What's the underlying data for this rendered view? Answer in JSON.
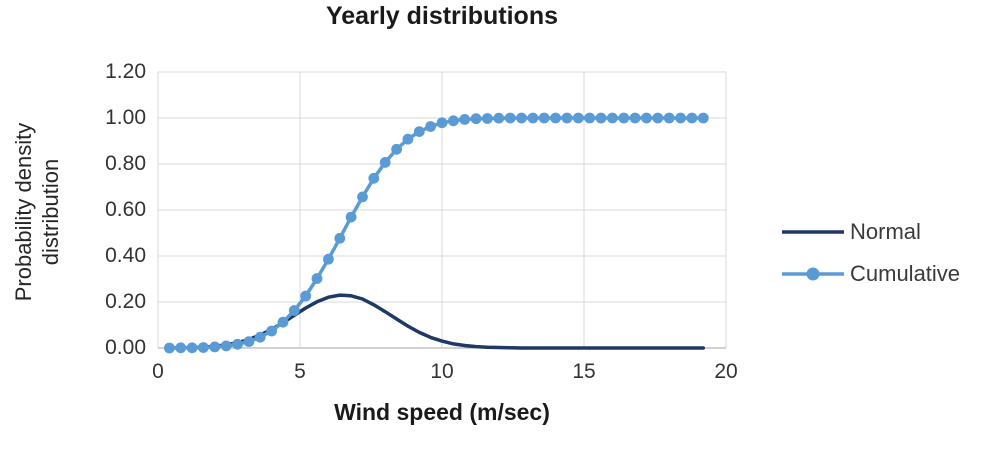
{
  "title": "Yearly distributions",
  "axes": {
    "x": {
      "title": "Wind speed (m/sec)",
      "tick_labels": [
        "0",
        "5",
        "10",
        "15",
        "20"
      ],
      "tick_values": [
        0,
        5,
        10,
        15,
        20
      ],
      "min": 0,
      "max": 20
    },
    "y": {
      "title_line1": "Probability density",
      "title_line2": "distribution",
      "tick_labels": [
        "0.00",
        "0.20",
        "0.40",
        "0.60",
        "0.80",
        "1.00",
        "1.20"
      ],
      "tick_values": [
        0,
        0.2,
        0.4,
        0.6,
        0.8,
        1.0,
        1.2
      ],
      "min": 0,
      "max": 1.2
    }
  },
  "colors": {
    "normal_line": "#1f3864",
    "cumulative_line": "#5b9bd5",
    "gridline": "#d9d9d9",
    "axis_line": "#a6a6a6",
    "text": "#262626"
  },
  "chart_data": {
    "type": "line",
    "title": "Yearly distributions",
    "xlabel": "Wind speed (m/sec)",
    "ylabel": "Probability density distribution",
    "xlim": [
      0,
      20
    ],
    "ylim": [
      0,
      1.2
    ],
    "grid": true,
    "legend_position": "right",
    "x": [
      0.4,
      0.8,
      1.2,
      1.6,
      2.0,
      2.4,
      2.8,
      3.2,
      3.6,
      4.0,
      4.4,
      4.8,
      5.2,
      5.6,
      6.0,
      6.4,
      6.8,
      7.2,
      7.6,
      8.0,
      8.4,
      8.8,
      9.2,
      9.6,
      10.0,
      10.4,
      10.8,
      11.2,
      11.6,
      12.0,
      12.4,
      12.8,
      13.2,
      13.6,
      14.0,
      14.4,
      14.8,
      15.2,
      15.6,
      16.0,
      16.4,
      16.8,
      17.2,
      17.6,
      18.0,
      18.4,
      18.8,
      19.2
    ],
    "series": [
      {
        "name": "Normal",
        "color": "#1f3864",
        "marker": "none",
        "values": [
          0.0,
          0.001,
          0.002,
          0.004,
          0.008,
          0.014,
          0.023,
          0.037,
          0.057,
          0.081,
          0.11,
          0.142,
          0.174,
          0.201,
          0.221,
          0.23,
          0.227,
          0.213,
          0.188,
          0.158,
          0.126,
          0.095,
          0.068,
          0.046,
          0.03,
          0.018,
          0.011,
          0.006,
          0.003,
          0.002,
          0.001,
          0.0,
          0.0,
          0.0,
          0.0,
          0.0,
          0.0,
          0.0,
          0.0,
          0.0,
          0.0,
          0.0,
          0.0,
          0.0,
          0.0,
          0.0,
          0.0,
          0.0
        ]
      },
      {
        "name": "Cumulative",
        "color": "#5b9bd5",
        "marker": "circle",
        "values": [
          0.0,
          0.001,
          0.001,
          0.002,
          0.005,
          0.009,
          0.016,
          0.028,
          0.047,
          0.074,
          0.112,
          0.163,
          0.226,
          0.302,
          0.386,
          0.477,
          0.569,
          0.657,
          0.738,
          0.807,
          0.864,
          0.908,
          0.941,
          0.963,
          0.979,
          0.988,
          0.994,
          0.997,
          0.998,
          0.999,
          1.0,
          1.0,
          1.0,
          1.0,
          1.0,
          1.0,
          1.0,
          1.0,
          1.0,
          1.0,
          1.0,
          1.0,
          1.0,
          1.0,
          1.0,
          1.0,
          1.0,
          1.0
        ]
      }
    ]
  }
}
